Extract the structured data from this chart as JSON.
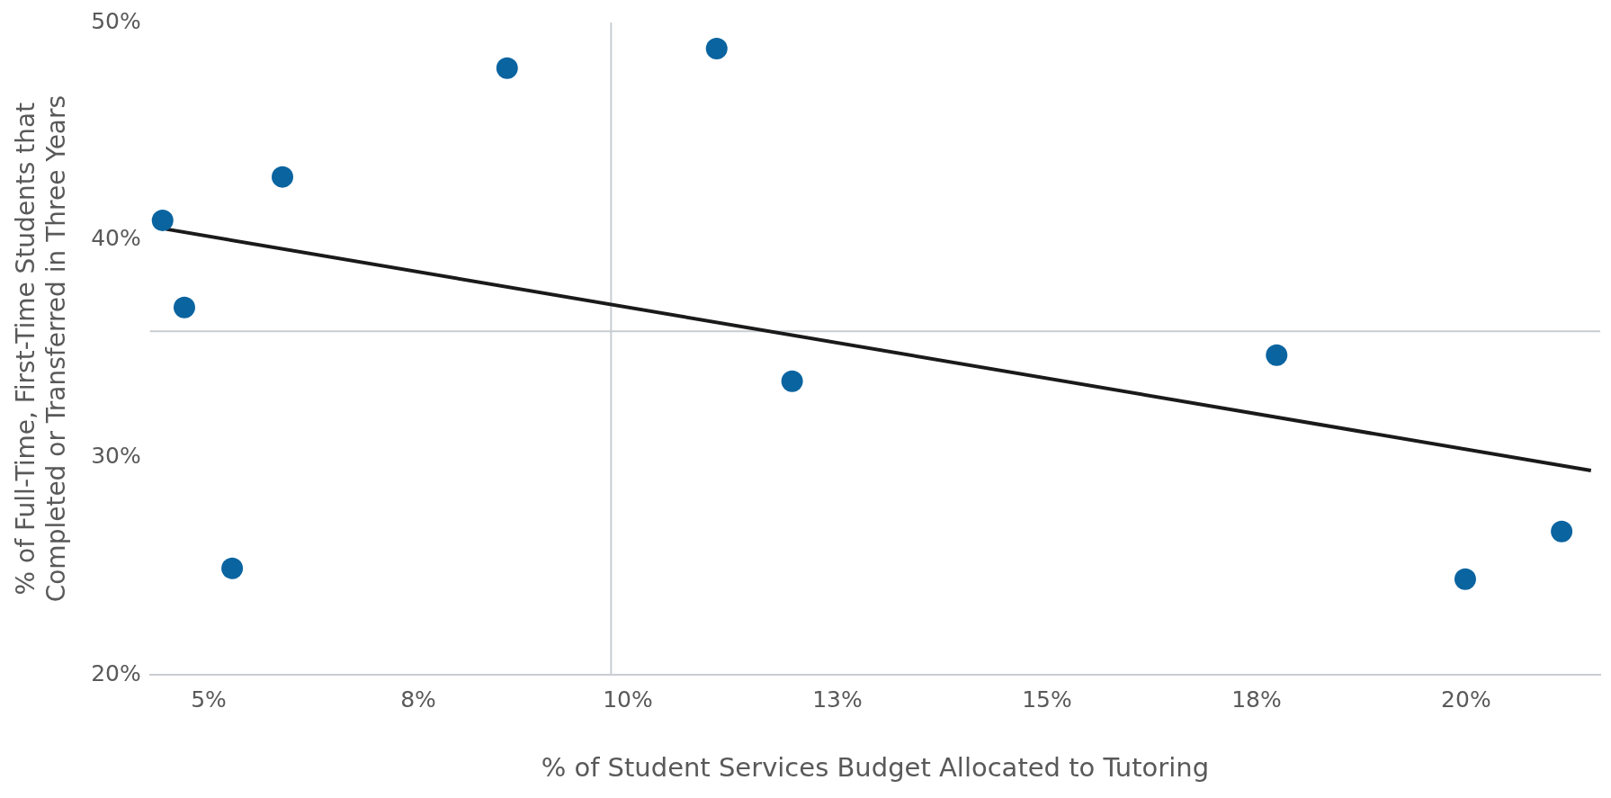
{
  "chart_data": {
    "type": "scatter",
    "xlabel": "% of Student Services Budget Allocated to Tutoring",
    "ylabel": "% of Full-Time, First-Time Students that Completed or Transferred in Three Years",
    "x": [
      4.45,
      4.71,
      5.28,
      5.88,
      8.56,
      11.06,
      11.96,
      17.74,
      19.99,
      21.14
    ],
    "series": [
      {
        "color": "#0a64a0",
        "values": [
          40.9,
          36.9,
          24.9,
          42.9,
          47.9,
          48.8,
          33.5,
          34.7,
          24.4,
          26.6
        ],
        "marker": "circle"
      },
      {
        "type": "line",
        "color": "#1a1a1a",
        "x": [
          4.49,
          21.49
        ],
        "values": [
          40.5,
          29.4
        ],
        "marker": "none"
      }
    ],
    "xlim": [
      4.3,
      21.6
    ],
    "xticks": [
      {
        "value": 5,
        "label": "5%"
      },
      {
        "value": 7.5,
        "label": "8%"
      },
      {
        "value": 10,
        "label": "10%"
      },
      {
        "value": 12.5,
        "label": "13%"
      },
      {
        "value": 15,
        "label": "15%"
      },
      {
        "value": 17.5,
        "label": "18%"
      },
      {
        "value": 20,
        "label": "20%"
      }
    ],
    "ylim": [
      20,
      50
    ],
    "yticks": [
      {
        "value": 20,
        "label": "20%"
      },
      {
        "value": 30,
        "label": "30%"
      },
      {
        "value": 40,
        "label": "40%"
      },
      {
        "value": 50,
        "label": "50%"
      }
    ],
    "ref_lines": [
      {
        "axis": "x",
        "value": 9.8,
        "color": "#c8cdd2"
      },
      {
        "axis": "y",
        "value": 35.8,
        "color": "#c8cdd2"
      }
    ],
    "grid": false,
    "legend": false
  }
}
